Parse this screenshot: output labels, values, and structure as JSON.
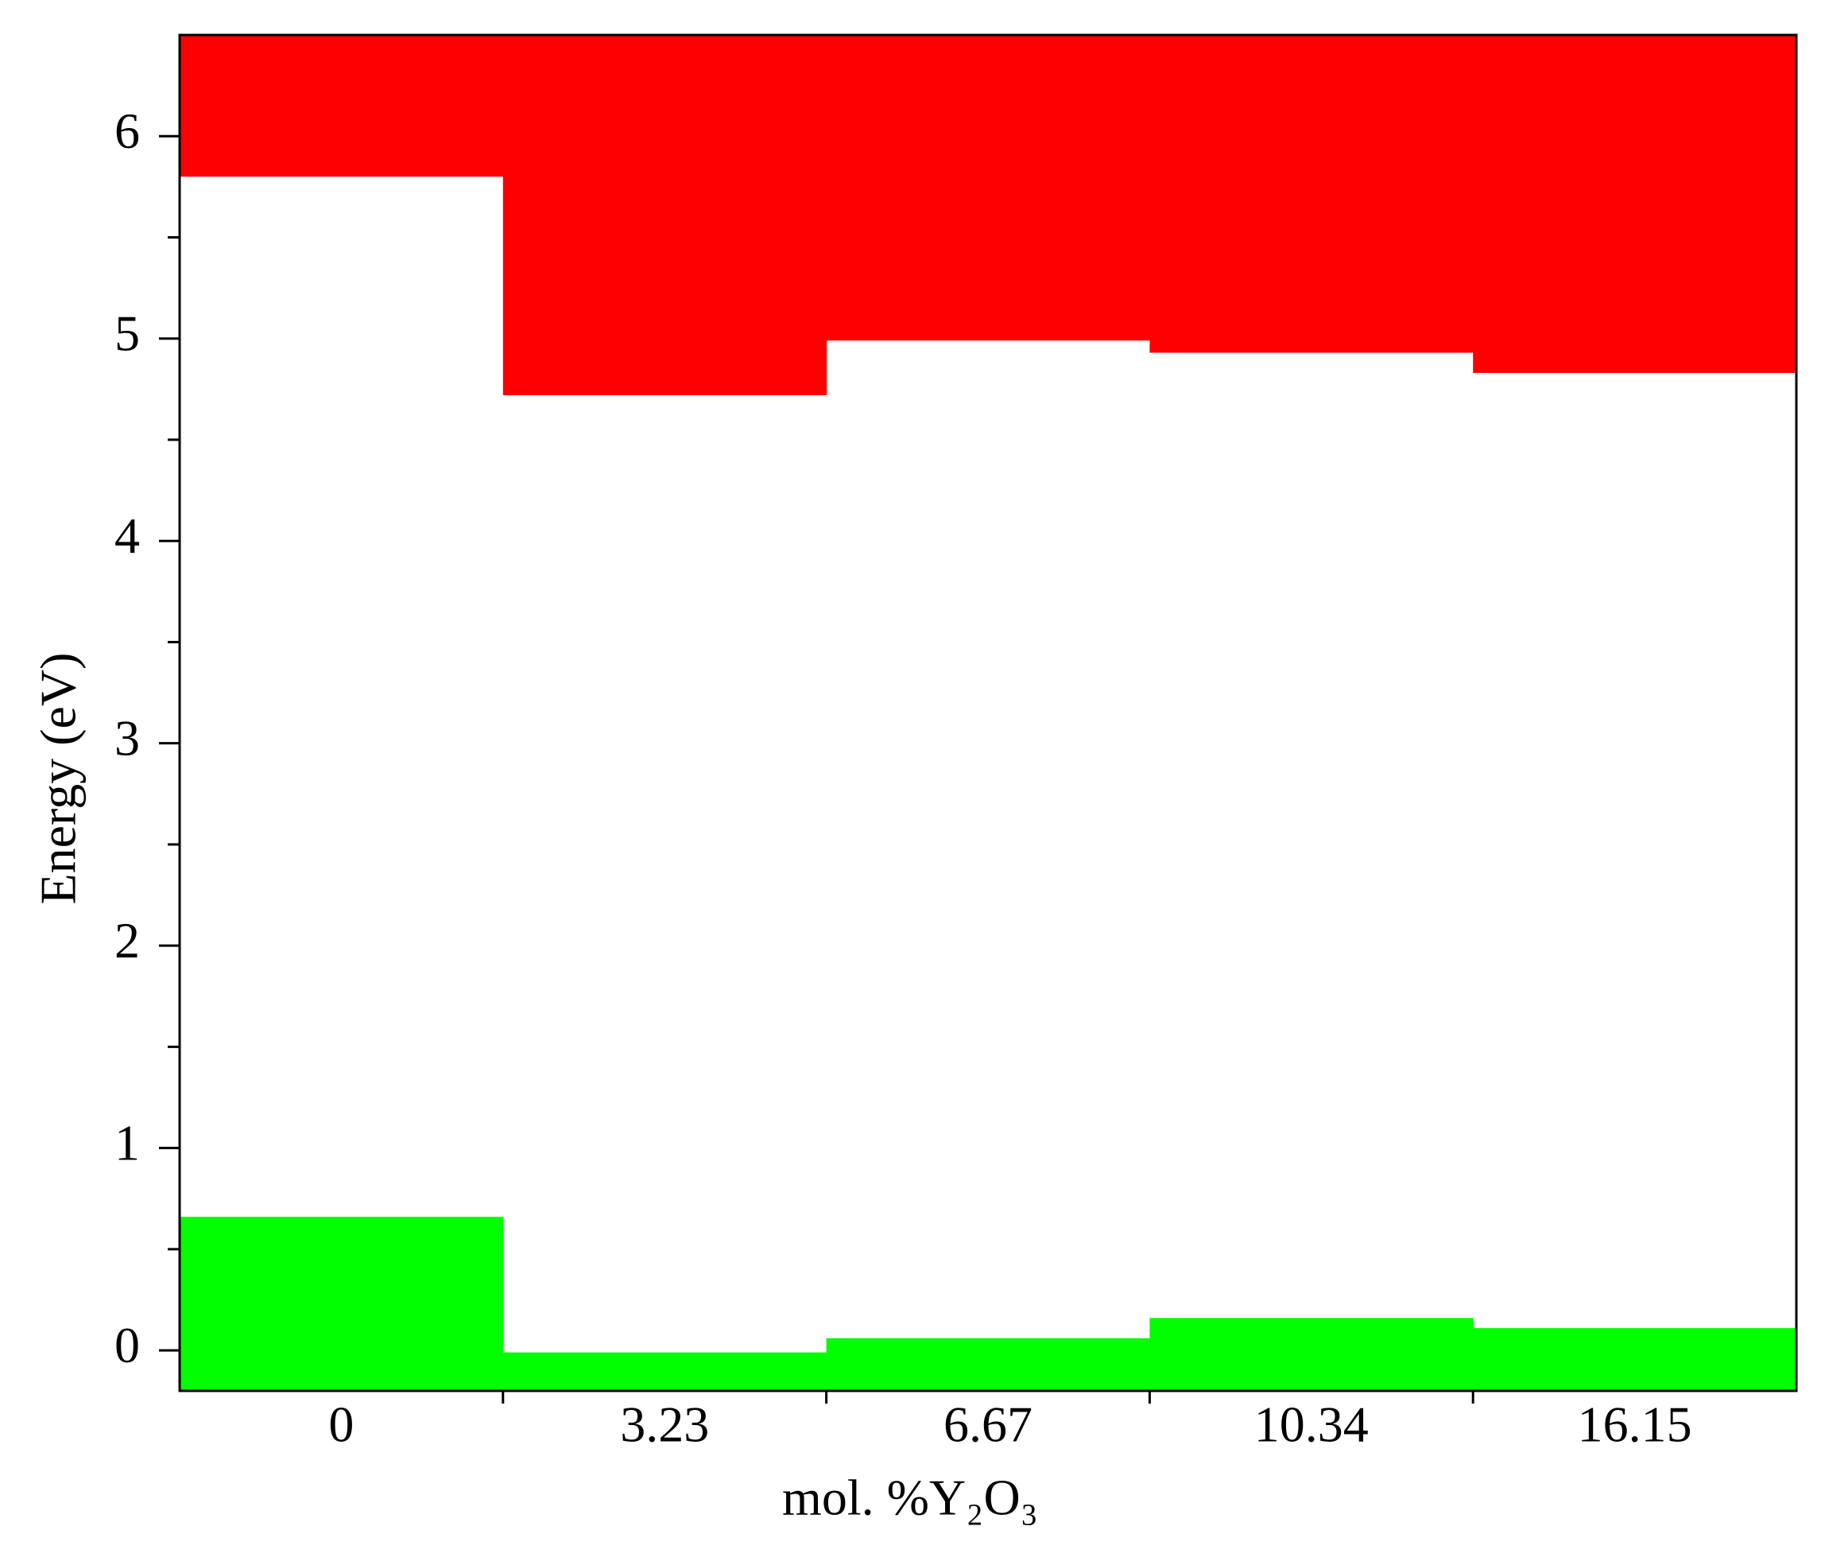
{
  "chart_data": {
    "type": "band",
    "x_label": "mol. %Y₂O₃",
    "y_label": "Energy (eV)",
    "categories": [
      "0",
      "3.23",
      "6.67",
      "10.34",
      "16.15"
    ],
    "series": [
      {
        "color": "#ff0000",
        "fill_to": "top",
        "values": [
          5.8,
          4.72,
          4.99,
          4.93,
          4.83
        ]
      },
      {
        "color": "#00ff00",
        "fill_to": "bottom",
        "values": [
          0.66,
          -0.01,
          0.06,
          0.16,
          0.11
        ]
      }
    ],
    "ylim": [
      -0.2,
      6.5
    ],
    "yticks": [
      0,
      1,
      2,
      3,
      4,
      5,
      6
    ],
    "minor_yticks": [
      0.5,
      1.5,
      2.5,
      3.5,
      4.5,
      5.5
    ]
  }
}
